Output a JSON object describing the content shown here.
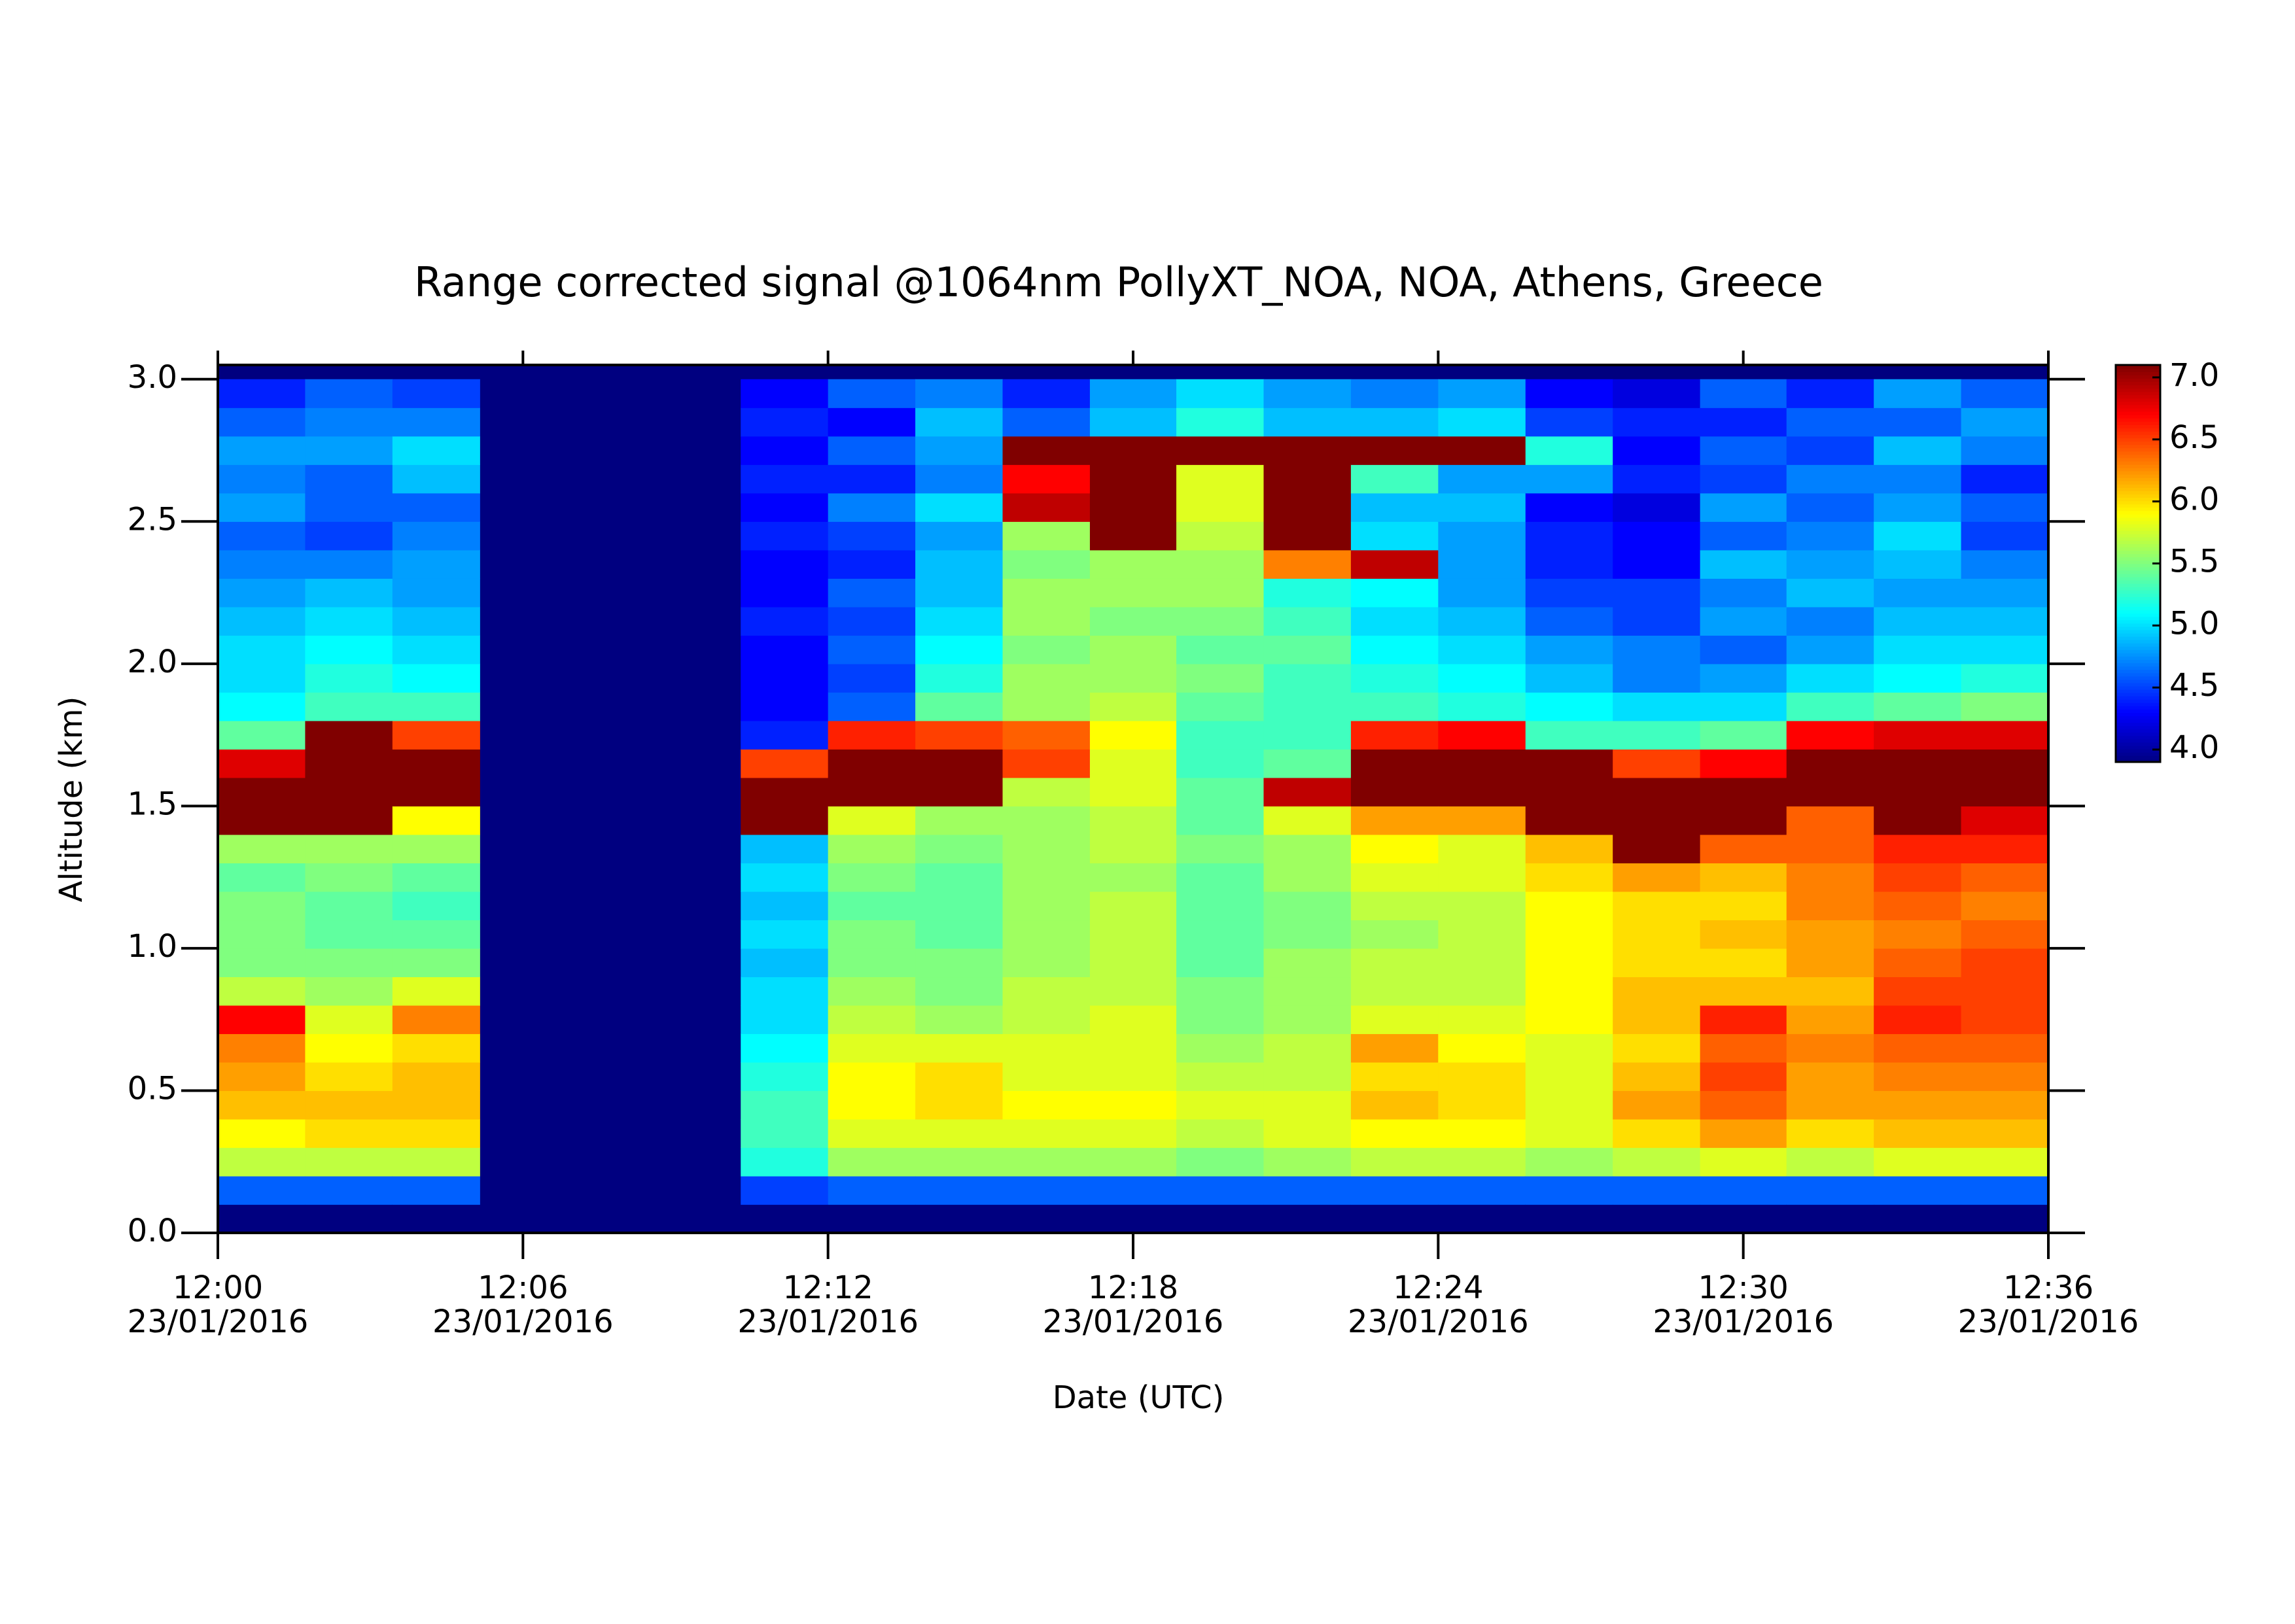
{
  "chart_data": {
    "type": "heatmap",
    "title": "Range corrected signal @1064nm  PollyXT_NOA, NOA, Athens, Greece",
    "x_label": "Date (UTC)",
    "y_label": "Altitude (km)",
    "colormap": "jet",
    "x": [
      "2016-01-23T12:00:00",
      "2016-01-23T12:01:43",
      "2016-01-23T12:03:26",
      "2016-01-23T12:05:09",
      "2016-01-23T12:06:51",
      "2016-01-23T12:08:34",
      "2016-01-23T12:10:17",
      "2016-01-23T12:12:00",
      "2016-01-23T12:13:43",
      "2016-01-23T12:15:26",
      "2016-01-23T12:17:09",
      "2016-01-23T12:18:51",
      "2016-01-23T12:20:34",
      "2016-01-23T12:22:17",
      "2016-01-23T12:24:00",
      "2016-01-23T12:25:43",
      "2016-01-23T12:27:26",
      "2016-01-23T12:29:09",
      "2016-01-23T12:30:51",
      "2016-01-23T12:32:34",
      "2016-01-23T12:34:17",
      "2016-01-23T12:36:00"
    ],
    "y": [
      0.0,
      0.1,
      0.2,
      0.3,
      0.4,
      0.5,
      0.6,
      0.7,
      0.8,
      0.9,
      1.0,
      1.1,
      1.2,
      1.3,
      1.4,
      1.5,
      1.6,
      1.7,
      1.8,
      1.9,
      2.0,
      2.1,
      2.2,
      2.3,
      2.4,
      2.5,
      2.6,
      2.7,
      2.8,
      2.9,
      3.0
    ],
    "values": [
      [
        3.9,
        4.6,
        5.7,
        5.9,
        6.1,
        6.2,
        6.3,
        6.7,
        5.7,
        5.5,
        5.5,
        5.5,
        5.4,
        5.6,
        7.1,
        7.1,
        6.8,
        5.4,
        5.1,
        5.0,
        5.0,
        4.9,
        4.8,
        4.7,
        4.6,
        4.8,
        4.7,
        4.8,
        4.6,
        4.4
      ],
      [
        3.9,
        4.6,
        5.7,
        6.0,
        6.1,
        6.0,
        5.9,
        5.8,
        5.6,
        5.5,
        5.4,
        5.4,
        5.5,
        5.6,
        7.1,
        7.1,
        7.1,
        7.1,
        5.3,
        5.2,
        5.1,
        5.0,
        4.9,
        4.7,
        4.5,
        4.6,
        4.6,
        4.8,
        4.7,
        4.6
      ],
      [
        3.9,
        4.6,
        5.7,
        6.0,
        6.1,
        6.1,
        6.0,
        6.3,
        5.8,
        5.5,
        5.4,
        5.3,
        5.4,
        5.6,
        5.9,
        7.1,
        7.1,
        6.5,
        5.3,
        5.1,
        5.0,
        4.9,
        4.8,
        4.8,
        4.7,
        4.6,
        4.9,
        5.0,
        4.7,
        4.5
      ],
      null,
      null,
      null,
      [
        3.9,
        4.5,
        5.2,
        5.3,
        5.3,
        5.2,
        5.1,
        5.0,
        5.0,
        4.9,
        5.0,
        4.9,
        5.0,
        4.9,
        7.1,
        7.1,
        6.5,
        4.4,
        4.3,
        4.3,
        4.3,
        4.4,
        4.3,
        4.3,
        4.4,
        4.3,
        4.4,
        4.3,
        4.4,
        4.3
      ],
      [
        3.9,
        4.6,
        5.6,
        5.8,
        5.9,
        5.9,
        5.8,
        5.7,
        5.6,
        5.5,
        5.5,
        5.4,
        5.5,
        5.6,
        5.8,
        7.1,
        7.1,
        6.6,
        4.6,
        4.5,
        4.6,
        4.5,
        4.6,
        4.4,
        4.5,
        4.7,
        4.4,
        4.6,
        4.3,
        4.6
      ],
      [
        3.9,
        4.6,
        5.6,
        5.8,
        6.0,
        6.0,
        5.8,
        5.6,
        5.5,
        5.5,
        5.4,
        5.4,
        5.4,
        5.5,
        5.6,
        7.1,
        7.1,
        6.5,
        5.4,
        5.2,
        5.1,
        5.0,
        4.9,
        4.9,
        4.8,
        5.0,
        4.7,
        4.8,
        4.9,
        4.7
      ],
      [
        3.9,
        4.6,
        5.6,
        5.8,
        5.9,
        5.8,
        5.8,
        5.7,
        5.7,
        5.6,
        5.6,
        5.6,
        5.6,
        5.6,
        5.6,
        5.7,
        6.5,
        6.4,
        5.6,
        5.6,
        5.5,
        5.6,
        5.6,
        5.5,
        5.6,
        6.9,
        6.7,
        7.1,
        4.6,
        4.4
      ],
      [
        3.9,
        4.6,
        5.6,
        5.8,
        5.9,
        5.8,
        5.8,
        5.8,
        5.7,
        5.7,
        5.7,
        5.7,
        5.6,
        5.7,
        5.7,
        5.8,
        5.8,
        5.9,
        5.7,
        5.6,
        5.6,
        5.5,
        5.6,
        5.6,
        7.1,
        7.1,
        7.1,
        7.1,
        4.9,
        4.8
      ],
      [
        3.9,
        4.6,
        5.5,
        5.7,
        5.8,
        5.7,
        5.6,
        5.5,
        5.5,
        5.4,
        5.4,
        5.4,
        5.4,
        5.5,
        5.4,
        5.4,
        5.3,
        5.3,
        5.4,
        5.5,
        5.4,
        5.5,
        5.6,
        5.6,
        5.7,
        5.8,
        5.8,
        7.1,
        5.2,
        5.0
      ],
      [
        3.9,
        4.6,
        5.6,
        5.8,
        5.8,
        5.7,
        5.7,
        5.6,
        5.6,
        5.6,
        5.5,
        5.5,
        5.6,
        5.6,
        5.8,
        6.9,
        5.4,
        5.3,
        5.3,
        5.3,
        5.4,
        5.3,
        5.2,
        6.3,
        7.1,
        7.1,
        7.1,
        7.1,
        4.9,
        4.8
      ],
      [
        3.9,
        4.6,
        5.7,
        5.9,
        6.1,
        6.0,
        6.2,
        5.8,
        5.7,
        5.7,
        5.6,
        5.7,
        5.8,
        5.9,
        6.2,
        7.1,
        7.1,
        6.6,
        5.3,
        5.2,
        5.1,
        5.0,
        5.1,
        6.9,
        5.0,
        4.9,
        5.3,
        7.1,
        4.9,
        4.7
      ],
      [
        3.9,
        4.6,
        5.7,
        5.9,
        6.0,
        6.0,
        5.9,
        5.8,
        5.7,
        5.7,
        5.7,
        5.7,
        5.8,
        5.8,
        6.2,
        7.1,
        7.1,
        6.7,
        5.2,
        5.1,
        5.0,
        4.9,
        4.8,
        4.8,
        4.8,
        4.9,
        4.8,
        7.1,
        5.0,
        4.8
      ],
      [
        3.9,
        4.6,
        5.6,
        5.8,
        5.8,
        5.8,
        5.8,
        5.9,
        5.9,
        5.9,
        5.9,
        5.9,
        6.0,
        6.1,
        7.1,
        7.1,
        7.1,
        5.3,
        5.1,
        4.9,
        4.8,
        4.6,
        4.5,
        4.4,
        4.4,
        4.3,
        4.8,
        5.2,
        4.5,
        4.3
      ],
      [
        3.9,
        4.6,
        5.7,
        6.0,
        6.2,
        6.1,
        6.0,
        6.1,
        6.1,
        6.0,
        6.0,
        6.0,
        6.2,
        7.1,
        7.1,
        7.1,
        6.5,
        5.3,
        5.0,
        4.7,
        4.7,
        4.5,
        4.5,
        4.3,
        4.3,
        4.2,
        4.4,
        4.3,
        4.4,
        4.2
      ],
      [
        3.9,
        4.6,
        5.8,
        6.2,
        6.4,
        6.5,
        6.4,
        6.6,
        6.1,
        6.0,
        6.1,
        6.0,
        6.1,
        6.4,
        7.1,
        7.1,
        6.7,
        5.4,
        5.0,
        4.8,
        4.6,
        4.8,
        4.7,
        4.9,
        4.6,
        4.8,
        4.5,
        4.6,
        4.4,
        4.6
      ],
      [
        3.9,
        4.6,
        5.7,
        6.0,
        6.2,
        6.2,
        6.3,
        6.2,
        6.1,
        6.2,
        6.2,
        6.3,
        6.3,
        6.4,
        6.4,
        7.1,
        7.1,
        6.7,
        5.3,
        5.0,
        4.8,
        4.7,
        4.9,
        4.8,
        4.7,
        4.6,
        4.7,
        4.5,
        4.6,
        4.4
      ],
      [
        3.9,
        4.6,
        5.8,
        6.1,
        6.2,
        6.3,
        6.4,
        6.6,
        6.5,
        6.4,
        6.3,
        6.4,
        6.5,
        6.6,
        7.1,
        7.1,
        7.1,
        6.8,
        5.4,
        5.1,
        5.0,
        4.9,
        4.8,
        4.9,
        5.0,
        4.8,
        4.7,
        4.9,
        4.6,
        4.8
      ],
      [
        3.9,
        4.6,
        5.8,
        6.1,
        6.2,
        6.3,
        6.4,
        6.5,
        6.5,
        6.5,
        6.4,
        6.3,
        6.4,
        6.6,
        6.8,
        7.1,
        7.1,
        6.8,
        5.5,
        5.2,
        5.0,
        4.9,
        4.8,
        4.7,
        4.5,
        4.6,
        4.4,
        4.7,
        4.8,
        4.6
      ]
    ],
    "xlim": [
      "2016-01-23T12:00:00",
      "2016-01-23T12:36:00"
    ],
    "xticks": [
      {
        "value": "2016-01-23T12:00:00",
        "label": [
          "12:00",
          "23/01/2016"
        ]
      },
      {
        "value": "2016-01-23T12:06:00",
        "label": [
          "12:06",
          "23/01/2016"
        ]
      },
      {
        "value": "2016-01-23T12:12:00",
        "label": [
          "12:12",
          "23/01/2016"
        ]
      },
      {
        "value": "2016-01-23T12:18:00",
        "label": [
          "12:18",
          "23/01/2016"
        ]
      },
      {
        "value": "2016-01-23T12:24:00",
        "label": [
          "12:24",
          "23/01/2016"
        ]
      },
      {
        "value": "2016-01-23T12:30:00",
        "label": [
          "12:30",
          "23/01/2016"
        ]
      },
      {
        "value": "2016-01-23T12:36:00",
        "label": [
          "12:36",
          "23/01/2016"
        ]
      }
    ],
    "ylim": [
      0,
      3.05
    ],
    "yticks": [
      {
        "value": 0,
        "label": "0.0"
      },
      0.5,
      {
        "value": 1,
        "label": "1.0"
      },
      1.5,
      {
        "value": 2,
        "label": "2.0"
      },
      2.5,
      {
        "value": 3,
        "label": "3.0"
      }
    ],
    "zlim": [
      3.9,
      7.1
    ],
    "zticks": [
      {
        "value": 4,
        "label": "4.0"
      },
      4.5,
      {
        "value": 5,
        "label": "5.0"
      },
      5.5,
      {
        "value": 6,
        "label": "6.0"
      },
      6.5,
      {
        "value": 7,
        "label": "7.0"
      }
    ]
  }
}
